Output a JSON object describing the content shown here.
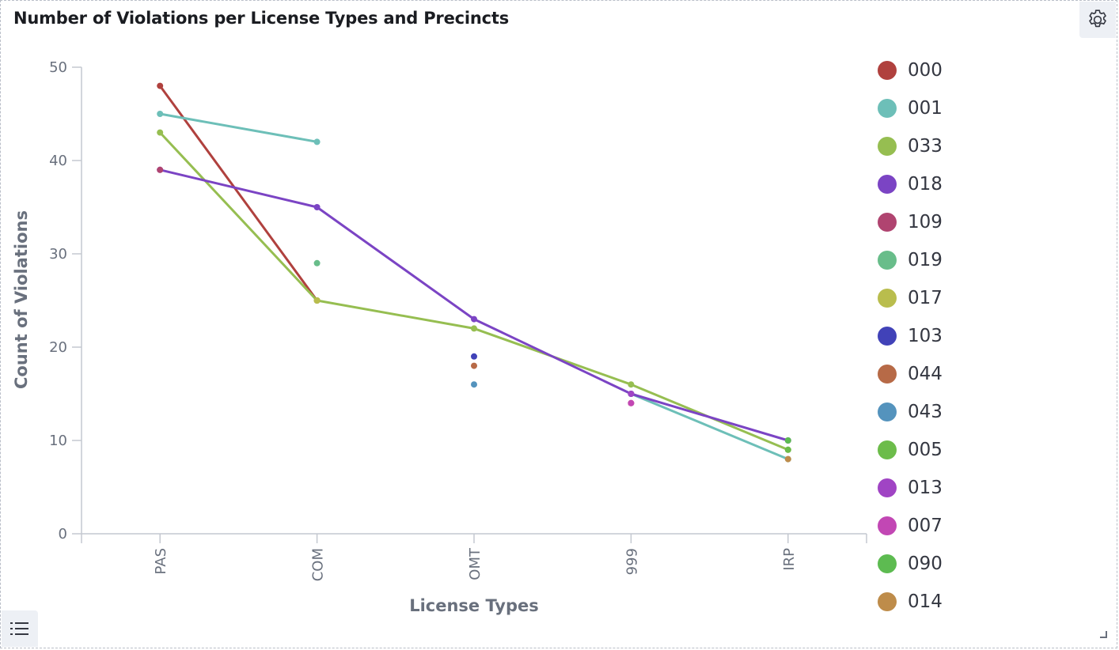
{
  "panel": {
    "title": "Number of Violations per License Types and Precincts",
    "icons": {
      "options": "gear-icon",
      "legend_toggle": "list-icon",
      "resize": "resize-corner-icon"
    }
  },
  "chart_data": {
    "type": "line",
    "title": "Number of Violations per License Types and Precincts",
    "xlabel": "License Types",
    "ylabel": "Count of Violations",
    "categories": [
      "PAS",
      "COM",
      "OMT",
      "999",
      "IRP"
    ],
    "ylim": [
      0,
      50
    ],
    "yticks": [
      "0",
      "10",
      "20",
      "30",
      "40",
      "50"
    ],
    "grid": false,
    "legend_position": "right",
    "series": [
      {
        "name": "000",
        "color": "#b0413e",
        "values": [
          48,
          25,
          null,
          14,
          null
        ]
      },
      {
        "name": "001",
        "color": "#6dbfb8",
        "values": [
          45,
          42,
          null,
          15,
          8
        ]
      },
      {
        "name": "033",
        "color": "#96be51",
        "values": [
          43,
          25,
          22,
          16,
          9
        ]
      },
      {
        "name": "018",
        "color": "#7b44c4",
        "values": [
          39,
          35,
          23,
          15,
          10
        ]
      },
      {
        "name": "109",
        "color": "#b04470",
        "values": [
          39,
          null,
          null,
          null,
          null
        ]
      },
      {
        "name": "019",
        "color": "#68bd8a",
        "values": [
          null,
          29,
          null,
          null,
          null
        ]
      },
      {
        "name": "017",
        "color": "#b9bd4d",
        "values": [
          null,
          25,
          null,
          null,
          null
        ]
      },
      {
        "name": "103",
        "color": "#4142b8",
        "values": [
          null,
          null,
          19,
          null,
          null
        ]
      },
      {
        "name": "044",
        "color": "#b76a47",
        "values": [
          null,
          null,
          18,
          null,
          null
        ]
      },
      {
        "name": "043",
        "color": "#5493bd",
        "values": [
          null,
          null,
          16,
          null,
          null
        ]
      },
      {
        "name": "005",
        "color": "#6cbc4a",
        "values": [
          null,
          null,
          null,
          null,
          9
        ]
      },
      {
        "name": "013",
        "color": "#a044c4",
        "values": [
          null,
          null,
          null,
          15,
          null
        ]
      },
      {
        "name": "007",
        "color": "#c247b4",
        "values": [
          null,
          null,
          null,
          14,
          null
        ]
      },
      {
        "name": "090",
        "color": "#5dbb51",
        "values": [
          null,
          null,
          null,
          null,
          10
        ]
      },
      {
        "name": "014",
        "color": "#be8c4a",
        "values": [
          null,
          null,
          null,
          null,
          8
        ]
      }
    ]
  }
}
